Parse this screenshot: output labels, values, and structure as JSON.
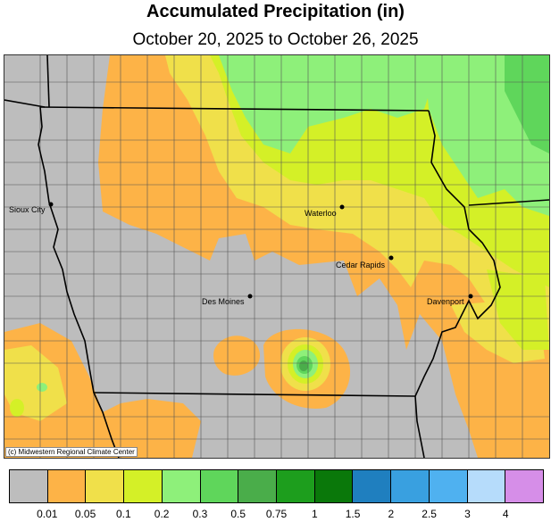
{
  "title": "Accumulated Precipitation (in)",
  "subtitle": "October 20, 2025 to October 26, 2025",
  "credit": "(c) Midwestern Regional Climate Center",
  "cities": [
    {
      "name": "Sioux City"
    },
    {
      "name": "Waterloo"
    },
    {
      "name": "Cedar Rapids"
    },
    {
      "name": "Des Moines"
    },
    {
      "name": "Davenport"
    }
  ],
  "legend": {
    "colors": [
      "#bdbdbd",
      "#fdb347",
      "#f0e04a",
      "#d4f027",
      "#8ef07a",
      "#5fd65b",
      "#4aad4a",
      "#1d9e1d",
      "#0a780a",
      "#1f7fbf",
      "#39a0e0",
      "#4fb1f0",
      "#b6dcfb",
      "#d68ee8"
    ],
    "labels": [
      "0.01",
      "0.05",
      "0.1",
      "0.2",
      "0.3",
      "0.5",
      "0.75",
      "1",
      "1.5",
      "2",
      "2.5",
      "3",
      "4"
    ]
  }
}
